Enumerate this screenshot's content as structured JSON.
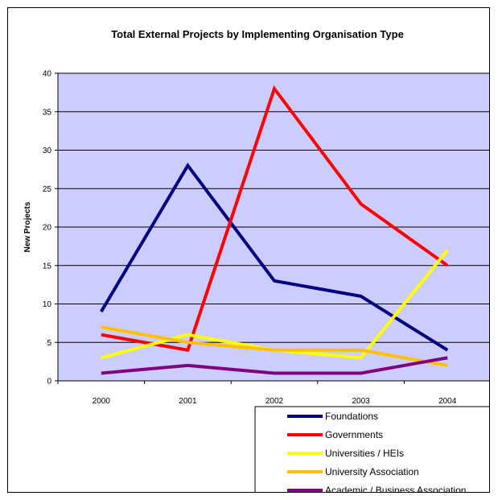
{
  "chart_data": {
    "type": "line",
    "title": "Total External Projects by Implementing Organisation Type",
    "ylabel": "New Projects",
    "xlabel": "",
    "categories": [
      "2000",
      "2001",
      "2002",
      "2003",
      "2004"
    ],
    "ylim": [
      0,
      40
    ],
    "yticks": [
      0,
      5,
      10,
      15,
      20,
      25,
      30,
      35,
      40
    ],
    "grid": true,
    "plot_background": "#ccccff",
    "legend_position": "bottom-right",
    "series": [
      {
        "name": "Foundations",
        "color": "#000080",
        "values": [
          9,
          28,
          13,
          11,
          4
        ]
      },
      {
        "name": "Governments",
        "color": "#ff0000",
        "values": [
          6,
          4,
          38,
          23,
          15
        ]
      },
      {
        "name": "Universities / HEIs",
        "color": "#ffff00",
        "values": [
          3,
          6,
          4,
          3,
          17
        ]
      },
      {
        "name": "University Association",
        "color": "#ffc000",
        "values": [
          7,
          5,
          4,
          4,
          2
        ]
      },
      {
        "name": "Academic / Business Association",
        "color": "#800080",
        "values": [
          1,
          2,
          1,
          1,
          3
        ]
      }
    ]
  }
}
